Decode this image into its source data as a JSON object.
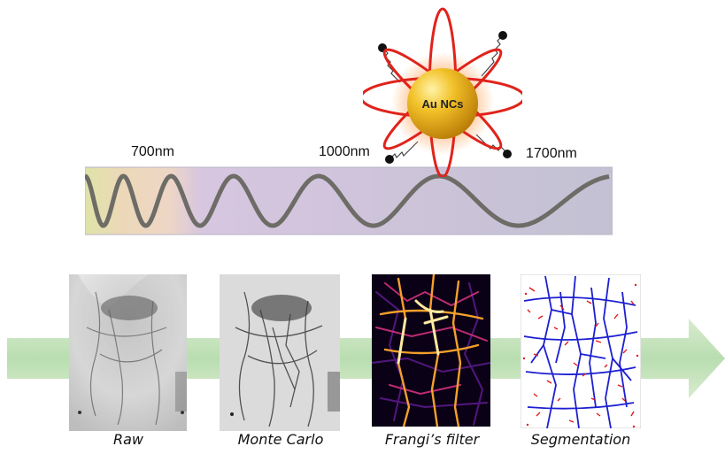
{
  "nanoparticle": {
    "label": "Au NCs"
  },
  "spectrum": {
    "labels": [
      "700nm",
      "1000nm",
      "1700nm"
    ]
  },
  "panels": [
    {
      "caption": "Raw"
    },
    {
      "caption": "Monte Carlo"
    },
    {
      "caption": "Frangi’s filter"
    },
    {
      "caption": "Segmentation"
    }
  ],
  "colors": {
    "arrow": "#b9ddb0",
    "orbit": "#e0231b",
    "gold": "#e5a810",
    "wave": "#6d6c66",
    "band": "#c9c6d8",
    "vessel_blue": "#1d1fd0",
    "vessel_red": "#e31a1a"
  }
}
